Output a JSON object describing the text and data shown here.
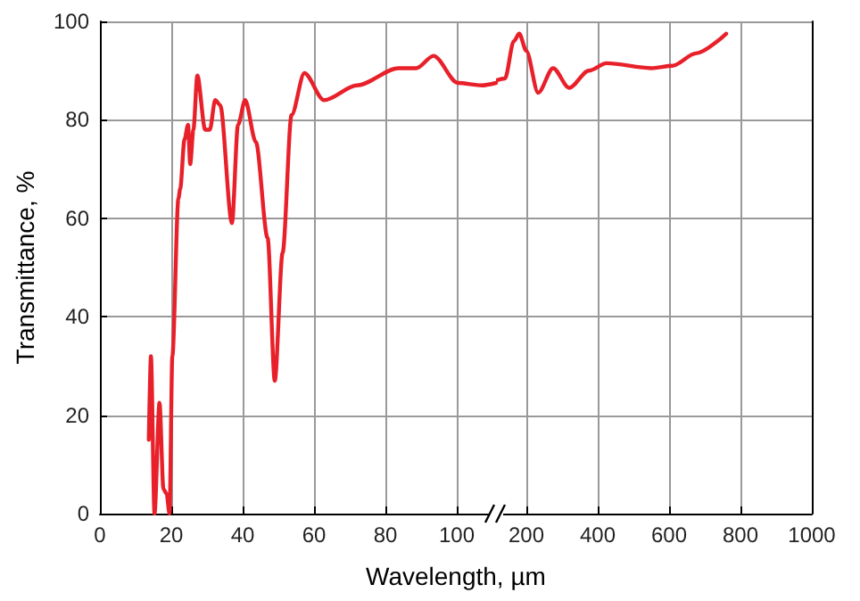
{
  "chart_data": [
    {
      "type": "line",
      "xlabel": "Wavelength, µm",
      "ylabel": "Transmittance, %",
      "xlim": [
        0,
        111
      ],
      "xticks": [
        0,
        20,
        40,
        60,
        80,
        100
      ],
      "ylim": [
        0,
        100
      ],
      "yticks": [
        0,
        20,
        40,
        60,
        80,
        100
      ],
      "grid": true,
      "marker": "none",
      "series": [
        {
          "color": "#e8202a",
          "x": [
            13.7,
            14.3,
            15.3,
            16.7,
            17.8,
            18.7,
            19.5,
            20.3,
            22,
            22.5,
            23.7,
            24.7,
            25.3,
            26.2,
            27.3,
            29.5,
            30.8,
            32.3,
            33.7,
            37,
            38.7,
            40.7,
            43.7,
            47,
            49,
            51.2,
            53.7,
            57.3,
            62.8,
            72,
            83.7,
            88.7,
            93.5,
            100.3,
            107,
            111
          ],
          "values": [
            15,
            32,
            0,
            22.5,
            5,
            4,
            0,
            32,
            64,
            66,
            76,
            79,
            71,
            78,
            89,
            78,
            78,
            84,
            83,
            59,
            79,
            84,
            75.5,
            56,
            27,
            53,
            81,
            89.5,
            84,
            87,
            90.5,
            90.5,
            93,
            87.5,
            87,
            87.5
          ]
        }
      ]
    },
    {
      "type": "line",
      "xlim": [
        115,
        1000
      ],
      "xticks": [
        200,
        400,
        600,
        800,
        1000
      ],
      "ylim": [
        0,
        100
      ],
      "yticks": [
        0,
        20,
        40,
        60,
        80,
        100
      ],
      "grid": true,
      "marker": "none",
      "tick_labels": "x",
      "series": [
        {
          "color": "#e8202a",
          "x": [
            115,
            140,
            165,
            180,
            200,
            233,
            275,
            320,
            375,
            425,
            550,
            610,
            675,
            760
          ],
          "values": [
            88,
            88.4,
            96,
            97.5,
            94,
            85.5,
            90.5,
            86.5,
            90,
            91.5,
            90.5,
            91,
            93.5,
            97.5
          ]
        }
      ]
    }
  ]
}
